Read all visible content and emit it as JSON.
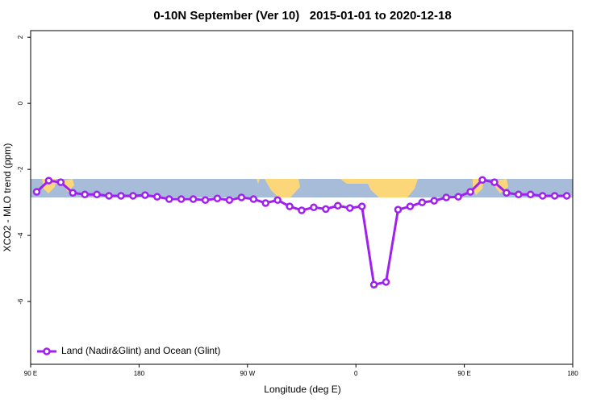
{
  "chart_data": {
    "type": "line",
    "title": "0-10N September (Ver 10)   2015-01-01 to 2020-12-18",
    "x_label": "Longitude (deg E)",
    "y_label": "XCO2 - MLO trend (ppm)",
    "x": [
      95,
      105,
      115,
      125,
      135,
      145,
      155,
      165,
      175,
      185,
      195,
      205,
      215,
      225,
      235,
      245,
      255,
      265,
      275,
      285,
      295,
      305,
      315,
      325,
      335,
      345,
      355,
      365,
      375,
      385,
      395,
      405,
      415,
      425,
      435,
      445,
      455,
      465,
      475,
      485,
      495,
      505,
      515,
      525,
      535
    ],
    "series": [
      {
        "name": "Land (Nadir&Glint) and Ocean (Glint)",
        "color": "#a020f0",
        "values": [
          -2.68,
          -2.34,
          -2.39,
          -2.71,
          -2.76,
          -2.76,
          -2.8,
          -2.8,
          -2.8,
          -2.78,
          -2.83,
          -2.9,
          -2.9,
          -2.9,
          -2.93,
          -2.88,
          -2.93,
          -2.85,
          -2.9,
          -3.02,
          -2.93,
          -3.12,
          -3.24,
          -3.15,
          -3.2,
          -3.1,
          -3.17,
          -3.12,
          -5.49,
          -5.41,
          -3.22,
          -3.12,
          -3.0,
          -2.95,
          -2.85,
          -2.83,
          -2.68,
          -2.32,
          -2.39,
          -2.71,
          -2.76,
          -2.76,
          -2.8,
          -2.8,
          -2.8
        ]
      }
    ],
    "xlim": [
      90,
      540
    ],
    "ylim": [
      -7.9,
      2.2
    ],
    "xticks": [
      {
        "value": 90,
        "label": "90 E"
      },
      180,
      {
        "value": 270,
        "label": "90 W"
      },
      {
        "value": 360,
        "label": "0"
      },
      {
        "value": 450,
        "label": "90 E"
      },
      {
        "value": 540,
        "label": "180"
      }
    ],
    "yticks": [
      2,
      0,
      -2,
      -4,
      -6
    ],
    "legend": "bottom-left"
  }
}
